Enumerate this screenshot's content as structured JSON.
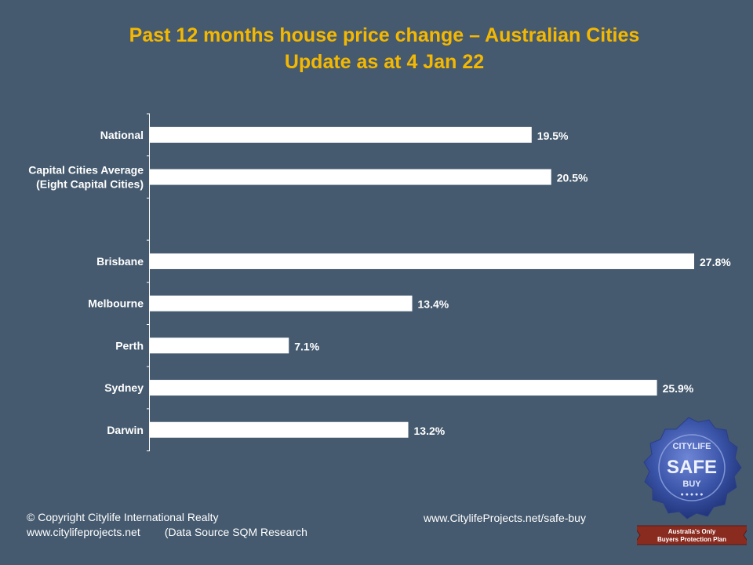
{
  "title": {
    "line1": "Past 12 months house price change – Australian Cities",
    "line2": "Update as at 4 Jan 22"
  },
  "chart_data": {
    "type": "bar",
    "orientation": "horizontal",
    "categories": [
      "National",
      "Capital Cities Average\n(Eight Capital Cities)",
      "",
      "Brisbane",
      "Melbourne",
      "Perth",
      "Sydney",
      "Darwin"
    ],
    "values": [
      19.5,
      20.5,
      null,
      27.8,
      13.4,
      7.1,
      25.9,
      13.2
    ],
    "value_labels": [
      "19.5%",
      "20.5%",
      "",
      "27.8%",
      "13.4%",
      "7.1%",
      "25.9%",
      "13.2%"
    ],
    "xlim": [
      0,
      28
    ],
    "bar_color": "#ffffff",
    "grid": false,
    "legend": "none"
  },
  "footer": {
    "copyright": "© Copyright Citylife International  Realty",
    "website": "www.citylifeprojects.net",
    "source": "(Data Source SQM Research",
    "safe_buy_url": "www.CitylifeProjects.net/safe-buy"
  },
  "seal": {
    "top_text": "CITYLIFE",
    "main_text": "SAFE",
    "sub_text": "BUY",
    "banner_line1": "Australia's Only",
    "banner_line2": "Buyers Protection Plan"
  },
  "colors": {
    "background": "#455a6f",
    "title": "#f5b800",
    "bars": "#ffffff",
    "seal": "#3a54a8",
    "banner": "#8a2b20"
  }
}
